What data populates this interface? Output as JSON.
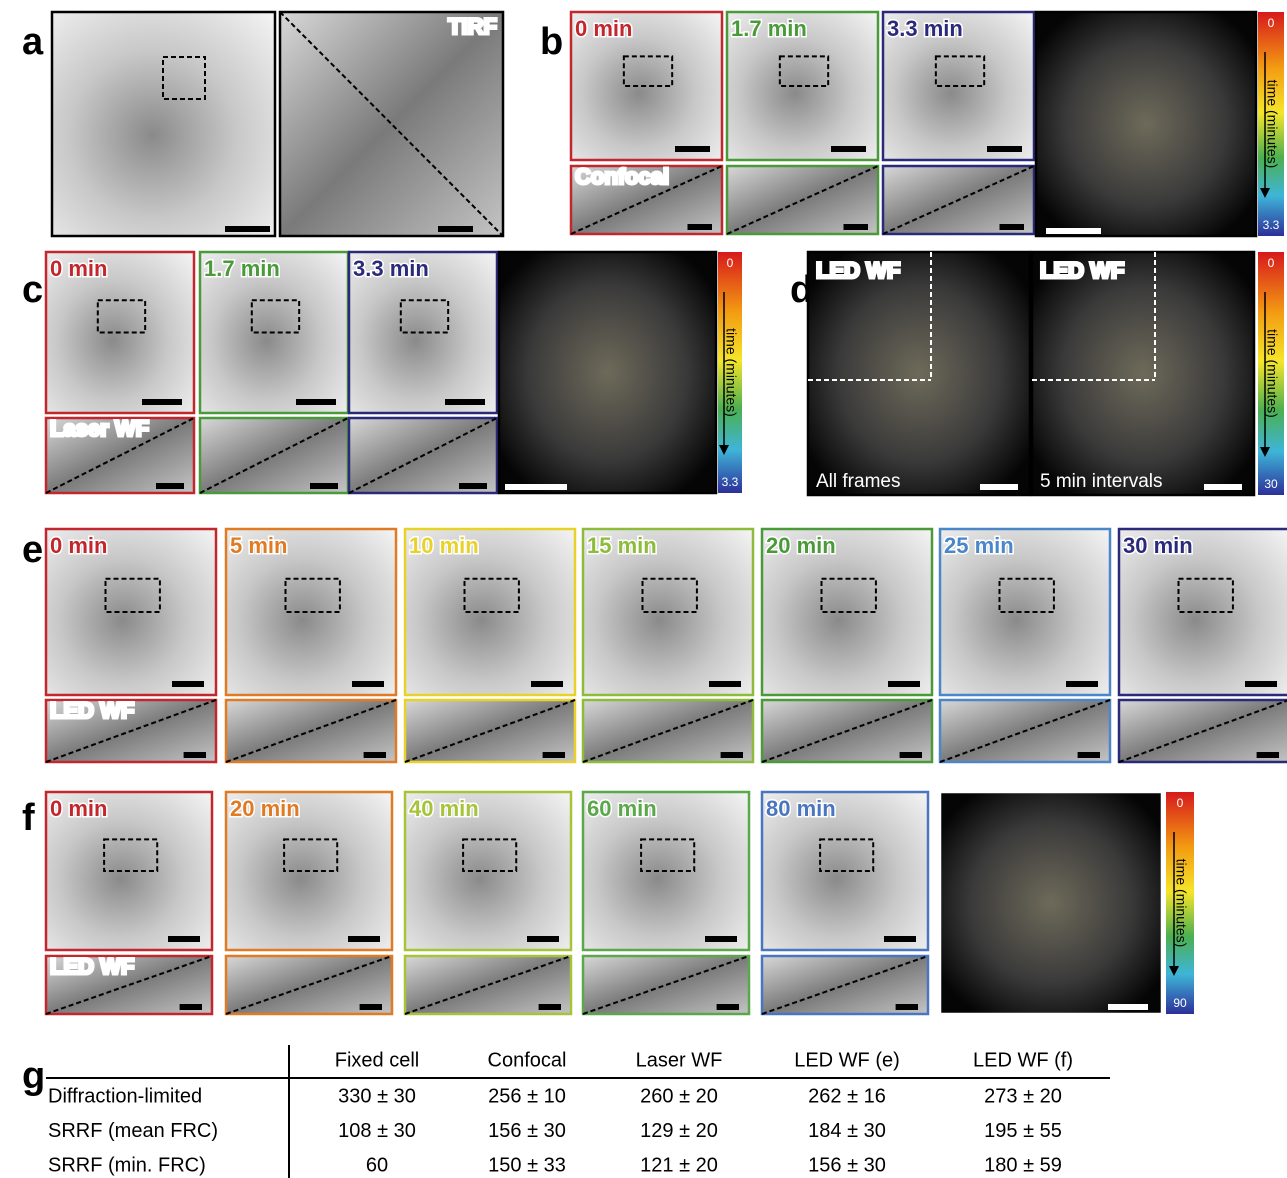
{
  "panels": {
    "a": {
      "letter": "a",
      "inset_label": "TIRF"
    },
    "b": {
      "letter": "b",
      "frames": [
        {
          "label": "0 min",
          "color": "#c1272d"
        },
        {
          "label": "1.7 min",
          "color": "#4a9a3a"
        },
        {
          "label": "3.3 min",
          "color": "#2b2a7a"
        }
      ],
      "inset_label": "Confocal",
      "colorbar": {
        "top": "0",
        "label": "time (minutes)",
        "bottom": "3.3"
      }
    },
    "c": {
      "letter": "c",
      "frames": [
        {
          "label": "0 min",
          "color": "#c1272d"
        },
        {
          "label": "1.7 min",
          "color": "#4a9a3a"
        },
        {
          "label": "3.3 min",
          "color": "#2b2a7a"
        }
      ],
      "inset_label": "Laser WF",
      "colorbar": {
        "top": "0",
        "label": "time (minutes)",
        "bottom": "3.3"
      }
    },
    "d": {
      "letter": "d",
      "image_label": "LED WF",
      "captions": [
        "All frames",
        "5 min intervals"
      ],
      "colorbar": {
        "top": "0",
        "label": "time (minutes)",
        "bottom": "30"
      }
    },
    "e": {
      "letter": "e",
      "frames": [
        {
          "label": "0 min",
          "color": "#c1272d"
        },
        {
          "label": "5 min",
          "color": "#e07b24"
        },
        {
          "label": "10 min",
          "color": "#e8d22a"
        },
        {
          "label": "15 min",
          "color": "#8dbb3a"
        },
        {
          "label": "20 min",
          "color": "#4a9a3a"
        },
        {
          "label": "25 min",
          "color": "#4a86c8"
        },
        {
          "label": "30 min",
          "color": "#2b2a7a"
        }
      ],
      "inset_label": "LED WF"
    },
    "f": {
      "letter": "f",
      "frames": [
        {
          "label": "0 min",
          "color": "#c1272d"
        },
        {
          "label": "20 min",
          "color": "#e07b24"
        },
        {
          "label": "40 min",
          "color": "#a6c43a"
        },
        {
          "label": "60 min",
          "color": "#5aa84a"
        },
        {
          "label": "80 min",
          "color": "#4a76c0"
        }
      ],
      "inset_label": "LED WF",
      "colorbar": {
        "top": "0",
        "label": "time (minutes)",
        "bottom": "90"
      }
    }
  },
  "table": {
    "letter": "g",
    "header": [
      "Fixed cell",
      "Confocal",
      "Laser WF",
      "LED WF (e)",
      "LED WF (f)"
    ],
    "rows": [
      {
        "label": "Diffraction-limited",
        "cells": [
          "330 ± 30",
          "256 ± 10",
          "260 ± 20",
          "262 ± 16",
          "273 ± 20"
        ]
      },
      {
        "label": "SRRF (mean FRC)",
        "cells": [
          "108 ± 30",
          "156 ± 30",
          "129 ± 20",
          "184 ± 30",
          "195 ± 55"
        ]
      },
      {
        "label": "SRRF (min. FRC)",
        "cells": [
          "60",
          "150 ± 33",
          "121 ± 20",
          "156 ± 30",
          "180 ± 59"
        ]
      }
    ]
  }
}
